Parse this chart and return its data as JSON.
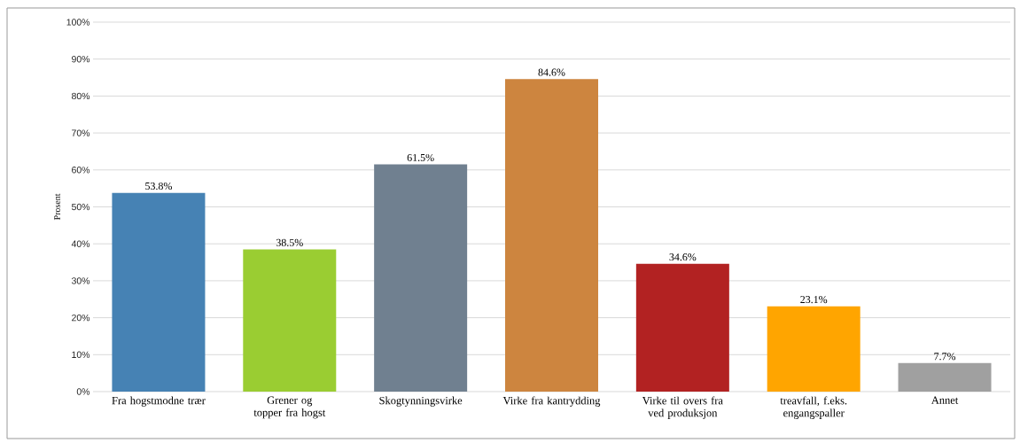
{
  "chart_data": {
    "type": "bar",
    "ylabel": "Prosent",
    "categories": [
      "Fra hogstmodne trær",
      "Grener og topper fra hogst",
      "Skogtynningsvirke",
      "Virke fra kantrydding",
      "Virke til overs fra ved produksjon",
      "treavfall, f.eks. engangspaller",
      "Annet"
    ],
    "values": [
      53.8,
      38.5,
      61.5,
      84.6,
      34.6,
      23.1,
      7.7
    ],
    "value_labels": [
      "53.8%",
      "38.5%",
      "61.5%",
      "84.6%",
      "34.6%",
      "23.1%",
      "7.7%"
    ],
    "colors": [
      "#4682b4",
      "#9acd32",
      "#708090",
      "#cd853f",
      "#b22222",
      "#ffa500",
      "#a0a0a0"
    ],
    "ylim": [
      0,
      100
    ],
    "yticks": [
      {
        "value": 0,
        "label": "0%"
      },
      {
        "value": 10,
        "label": "10%"
      },
      {
        "value": 20,
        "label": "20%"
      },
      {
        "value": 30,
        "label": "30%"
      },
      {
        "value": 40,
        "label": "40%"
      },
      {
        "value": 50,
        "label": "50%"
      },
      {
        "value": 60,
        "label": "60%"
      },
      {
        "value": 70,
        "label": "70%"
      },
      {
        "value": 80,
        "label": "80%"
      },
      {
        "value": 90,
        "label": "90%"
      },
      {
        "value": 100,
        "label": "100%"
      }
    ],
    "grid": "y"
  }
}
